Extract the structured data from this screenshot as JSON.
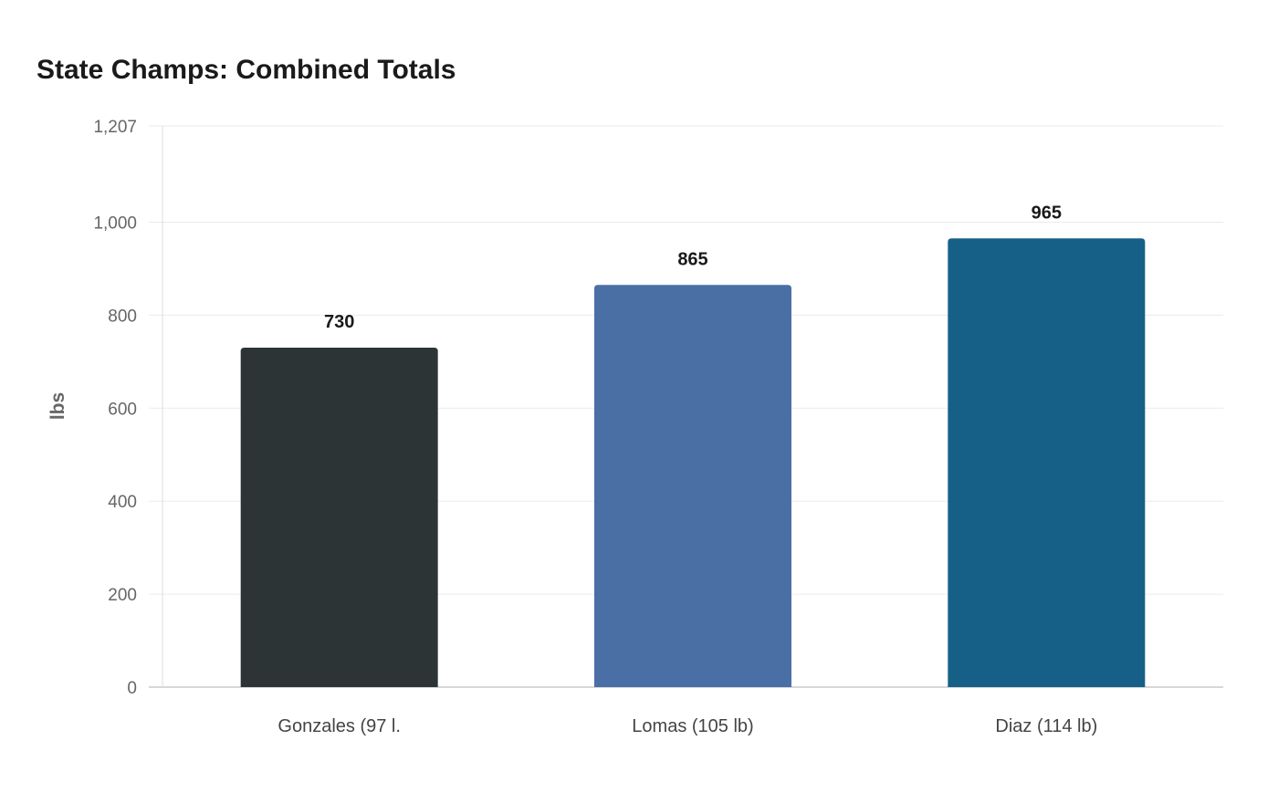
{
  "chart_data": {
    "type": "bar",
    "title": "State Champs: Combined Totals",
    "xlabel": "",
    "ylabel": "lbs",
    "categories": [
      "Gonzales (97 l.",
      "Lomas (105 lb)",
      "Diaz (114 lb)"
    ],
    "values": [
      730,
      865,
      965
    ],
    "data_labels": [
      "730",
      "865",
      "965"
    ],
    "colors": [
      "#2d3436",
      "#4a6fa5",
      "#166088"
    ],
    "ylim": [
      0,
      1207
    ],
    "yticks": [
      0,
      200,
      400,
      600,
      800,
      1000,
      1207
    ],
    "ytick_labels": [
      "0",
      "200",
      "400",
      "600",
      "800",
      "1,000",
      "1,207"
    ],
    "grid": true,
    "legend": "none"
  }
}
